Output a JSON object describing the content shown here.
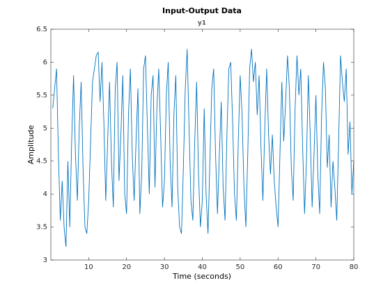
{
  "chart_data": {
    "type": "line",
    "title": "Input-Output Data",
    "subtitle": "y1",
    "xlabel": "Time (seconds)",
    "ylabel": "Amplitude",
    "xlim": [
      0,
      80
    ],
    "xticks": [
      10,
      20,
      30,
      40,
      50,
      60,
      70,
      80
    ],
    "ylim": [
      3,
      6.5
    ],
    "yticks": [
      3,
      3.5,
      4,
      4.5,
      5,
      5.5,
      6,
      6.5
    ],
    "grid": false,
    "x": [
      0.5,
      1,
      1.5,
      2,
      2.5,
      3,
      3.5,
      4,
      4.5,
      5,
      5.5,
      6,
      6.5,
      7,
      7.5,
      8,
      8.5,
      9,
      9.5,
      10,
      10.5,
      11,
      11.5,
      12,
      12.5,
      13,
      13.5,
      14,
      14.5,
      15,
      15.5,
      16,
      16.5,
      17,
      17.5,
      18,
      18.5,
      19,
      19.5,
      20,
      20.5,
      21,
      21.5,
      22,
      22.5,
      23,
      23.5,
      24,
      24.5,
      25,
      25.5,
      26,
      26.5,
      27,
      27.5,
      28,
      28.5,
      29,
      29.5,
      30,
      30.5,
      31,
      31.5,
      32,
      32.5,
      33,
      33.5,
      34,
      34.5,
      35,
      35.5,
      36,
      36.5,
      37,
      37.5,
      38,
      38.5,
      39,
      39.5,
      40,
      40.5,
      41,
      41.5,
      42,
      42.5,
      43,
      43.5,
      44,
      44.5,
      45,
      45.5,
      46,
      46.5,
      47,
      47.5,
      48,
      48.5,
      49,
      49.5,
      50,
      50.5,
      51,
      51.5,
      52,
      52.5,
      53,
      53.5,
      54,
      54.5,
      55,
      55.5,
      56,
      56.5,
      57,
      57.5,
      58,
      58.5,
      59,
      59.5,
      60,
      60.5,
      61,
      61.5,
      62,
      62.5,
      63,
      63.5,
      64,
      64.5,
      65,
      65.5,
      66,
      66.5,
      67,
      67.5,
      68,
      68.5,
      69,
      69.5,
      70,
      70.5,
      71,
      71.5,
      72,
      72.5,
      73,
      73.5,
      74,
      74.5,
      75,
      75.5,
      76,
      76.5,
      77,
      77.5,
      78,
      78.5,
      79,
      79.5,
      80
    ],
    "series": [
      {
        "name": "y1",
        "color": "#0072bd",
        "values": [
          5.3,
          5.6,
          5.9,
          4.6,
          3.6,
          4.2,
          3.5,
          3.2,
          4.5,
          3.5,
          4.8,
          5.8,
          4.6,
          3.9,
          5.0,
          5.7,
          4.4,
          3.5,
          3.4,
          3.9,
          4.8,
          5.7,
          5.9,
          6.1,
          6.15,
          5.4,
          6.0,
          5.1,
          3.9,
          4.8,
          5.7,
          4.5,
          3.8,
          5.6,
          6.0,
          4.2,
          4.9,
          5.8,
          4.0,
          3.7,
          5.2,
          5.9,
          4.6,
          3.9,
          4.8,
          5.6,
          3.7,
          4.3,
          5.9,
          6.1,
          5.0,
          4.0,
          5.5,
          5.8,
          4.1,
          5.3,
          5.9,
          4.9,
          3.8,
          4.2,
          5.5,
          6.0,
          4.5,
          3.8,
          5.2,
          5.8,
          4.1,
          3.5,
          3.4,
          4.4,
          5.6,
          6.2,
          5.0,
          3.9,
          3.6,
          4.8,
          5.7,
          4.3,
          3.5,
          3.9,
          5.3,
          4.0,
          3.4,
          4.5,
          5.6,
          5.9,
          4.6,
          3.7,
          4.6,
          5.4,
          4.1,
          3.6,
          4.9,
          5.9,
          6.0,
          5.1,
          4.0,
          3.6,
          4.8,
          5.8,
          5.2,
          4.1,
          3.5,
          4.6,
          5.9,
          6.2,
          5.7,
          6.0,
          5.2,
          5.8,
          4.7,
          3.9,
          5.0,
          5.9,
          4.9,
          4.3,
          4.9,
          4.2,
          3.8,
          3.5,
          4.6,
          5.7,
          4.8,
          5.4,
          6.1,
          5.6,
          4.4,
          3.9,
          5.3,
          6.1,
          5.5,
          5.9,
          4.7,
          3.7,
          4.5,
          5.8,
          4.9,
          3.8,
          4.6,
          5.5,
          4.3,
          3.7,
          5.2,
          6.0,
          5.6,
          4.4,
          4.9,
          3.8,
          4.5,
          4.1,
          3.6,
          4.8,
          6.1,
          5.7,
          5.4,
          5.9,
          4.6,
          5.1,
          4.0,
          4.5
        ]
      }
    ]
  }
}
